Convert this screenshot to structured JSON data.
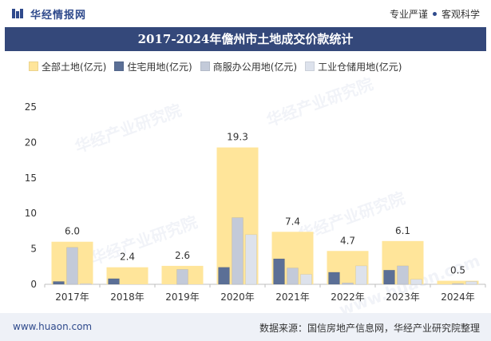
{
  "header": {
    "brand": "华经情报网",
    "tagline_left": "专业严谨",
    "tagline_right": "客观科学"
  },
  "footer": {
    "website": "www.huaon.com",
    "source": "数据来源：国信房地产信息网，华经产业研究院整理"
  },
  "watermark": {
    "text": "华经产业研究院",
    "url": "www.huaon.com"
  },
  "colors": {
    "header_band": "#34487a",
    "all_land": "#ffe59a",
    "residential": "#5b6f96",
    "commercial": "#c3cad9",
    "industrial": "#dde2ec"
  },
  "chart_data": {
    "type": "bar",
    "title": "2017-2024年儋州市土地成交价款统计",
    "categories": [
      "2017年",
      "2018年",
      "2019年",
      "2020年",
      "2021年",
      "2022年",
      "2023年",
      "2024年"
    ],
    "ylim": [
      0,
      25
    ],
    "yticks": [
      0,
      5,
      10,
      15,
      20,
      25
    ],
    "xlabel": "",
    "ylabel": "",
    "legend_position": "top",
    "grid": false,
    "series": [
      {
        "name": "全部土地(亿元)",
        "values": [
          6.0,
          2.4,
          2.6,
          19.3,
          7.4,
          4.7,
          6.1,
          0.5
        ],
        "data_labels": [
          "6.0",
          "2.4",
          "2.6",
          "19.3",
          "7.4",
          "4.7",
          "6.1",
          "0.5"
        ]
      },
      {
        "name": "住宅用地(亿元)",
        "values": [
          0.4,
          0.8,
          0.0,
          2.4,
          3.6,
          1.7,
          2.0,
          0.0
        ]
      },
      {
        "name": "商服办公用地(亿元)",
        "values": [
          5.2,
          0.0,
          2.1,
          9.4,
          2.3,
          0.2,
          2.6,
          0.1
        ]
      },
      {
        "name": "工业仓储用地(亿元)",
        "values": [
          0.1,
          0.0,
          0.0,
          7.0,
          1.4,
          2.6,
          0.7,
          0.4
        ]
      }
    ]
  }
}
